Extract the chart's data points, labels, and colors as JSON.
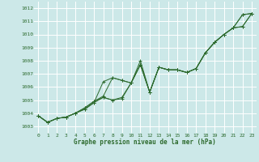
{
  "xlabel": "Graphe pression niveau de la mer (hPa)",
  "ylabel": "",
  "bg_color": "#cce8e8",
  "grid_color": "#ffffff",
  "line_color": "#2d6a2d",
  "marker_color": "#2d6a2d",
  "ylim": [
    1002.5,
    1012.5
  ],
  "xlim": [
    -0.5,
    23.5
  ],
  "yticks": [
    1003,
    1004,
    1005,
    1006,
    1007,
    1008,
    1009,
    1010,
    1011,
    1012
  ],
  "xticks": [
    0,
    1,
    2,
    3,
    4,
    5,
    6,
    7,
    8,
    9,
    10,
    11,
    12,
    13,
    14,
    15,
    16,
    17,
    18,
    19,
    20,
    21,
    22,
    23
  ],
  "series": [
    [
      1003.8,
      1003.3,
      1003.6,
      1003.7,
      1004.0,
      1004.3,
      1004.8,
      1006.4,
      1006.7,
      1006.5,
      1006.3,
      1008.0,
      1005.6,
      1007.5,
      1007.3,
      1007.3,
      1007.1,
      1007.4,
      1008.6,
      1009.4,
      1010.0,
      1010.5,
      1011.5,
      1011.6
    ],
    [
      1003.8,
      1003.3,
      1003.6,
      1003.7,
      1004.0,
      1004.3,
      1004.8,
      1005.2,
      1005.0,
      1005.1,
      1006.3,
      1007.7,
      1005.6,
      1007.5,
      1007.3,
      1007.3,
      1007.1,
      1007.4,
      1008.6,
      1009.4,
      1010.0,
      1010.5,
      1011.5,
      1011.6
    ],
    [
      1003.8,
      1003.3,
      1003.6,
      1003.7,
      1004.0,
      1004.4,
      1004.9,
      1005.2,
      1005.0,
      1005.2,
      1006.3,
      1007.7,
      1005.6,
      1007.5,
      1007.3,
      1007.3,
      1007.1,
      1007.4,
      1008.6,
      1009.4,
      1010.0,
      1010.5,
      1010.6,
      1011.6
    ],
    [
      1003.8,
      1003.3,
      1003.6,
      1003.7,
      1004.0,
      1004.4,
      1004.9,
      1005.3,
      1006.7,
      1006.5,
      1006.3,
      1007.7,
      1005.6,
      1007.5,
      1007.3,
      1007.3,
      1007.1,
      1007.4,
      1008.6,
      1009.4,
      1010.0,
      1010.5,
      1010.6,
      1011.6
    ]
  ]
}
